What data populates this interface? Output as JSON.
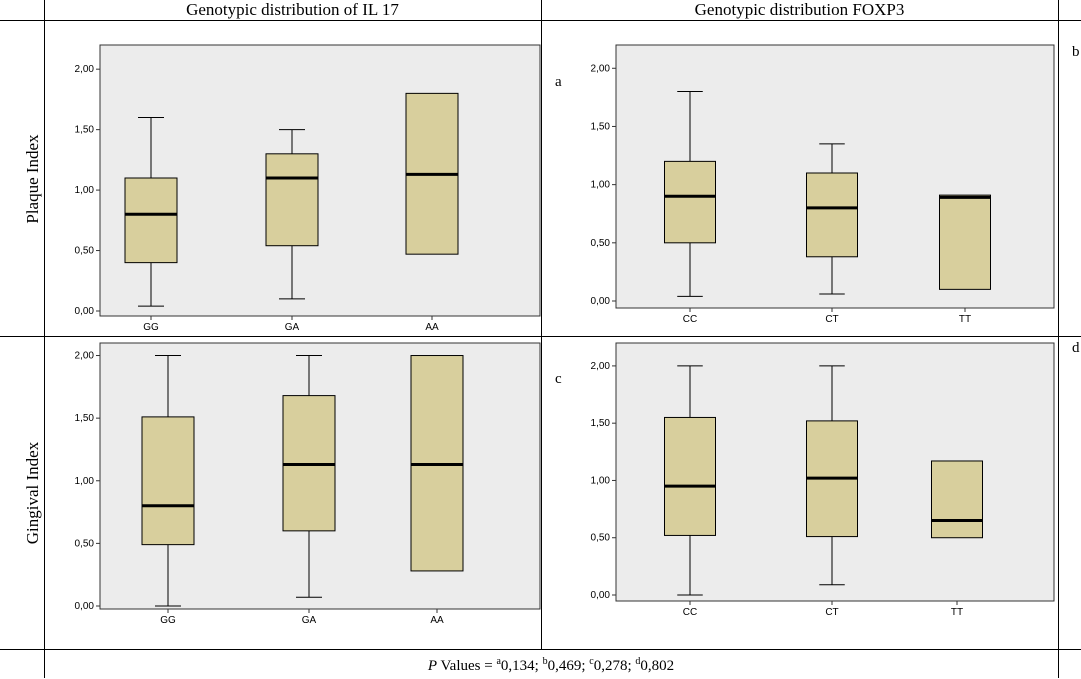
{
  "headers": {
    "il17": "Genotypic distribution of IL 17",
    "foxp3": "Genotypic distribution FOXP3"
  },
  "row_labels": {
    "plaque": "Plaque Index",
    "gingival": "Gingival Index"
  },
  "panel_labels": {
    "a": "a",
    "b": "b",
    "c": "c",
    "d": "d"
  },
  "footer": {
    "prefix": "P",
    "text": " Values = ",
    "items": [
      {
        "sup": "a",
        "value": "0,134"
      },
      {
        "sup": "b",
        "value": "0,469"
      },
      {
        "sup": "c",
        "value": "0,278"
      },
      {
        "sup": "d",
        "value": "0,802"
      }
    ],
    "separator": "; "
  },
  "colors": {
    "plot_bg": "#ececec",
    "box_fill": "#d8cf9d",
    "median": "#000000",
    "border": "#000000"
  },
  "chart_data": [
    {
      "type": "boxplot",
      "panel": "a",
      "categories": [
        "GG",
        "GA",
        "AA"
      ],
      "ylim": [
        0,
        2.2
      ],
      "yticks": [
        "0,00",
        "0,50",
        "1,00",
        "1,50",
        "2,00"
      ],
      "boxes": [
        {
          "min": 0.04,
          "q1": 0.4,
          "median": 0.8,
          "q3": 1.1,
          "max": 1.6
        },
        {
          "min": 0.1,
          "q1": 0.54,
          "median": 1.1,
          "q3": 1.3,
          "max": 1.5
        },
        {
          "min": null,
          "q1": 0.47,
          "median": 1.13,
          "q3": 1.8,
          "max": null
        }
      ]
    },
    {
      "type": "boxplot",
      "panel": "b",
      "categories": [
        "CC",
        "CT",
        "TT"
      ],
      "ylim": [
        0,
        2.2
      ],
      "yticks": [
        "0,00",
        "0,50",
        "1,00",
        "1,50",
        "2,00"
      ],
      "boxes": [
        {
          "min": 0.04,
          "q1": 0.5,
          "median": 0.9,
          "q3": 1.2,
          "max": 1.8
        },
        {
          "min": 0.06,
          "q1": 0.38,
          "median": 0.8,
          "q3": 1.1,
          "max": 1.35
        },
        {
          "min": null,
          "q1": 0.1,
          "median": 0.89,
          "q3": 0.91,
          "max": null
        }
      ]
    },
    {
      "type": "boxplot",
      "panel": "c",
      "categories": [
        "GG",
        "GA",
        "AA"
      ],
      "ylim": [
        0,
        2.1
      ],
      "yticks": [
        "0,00",
        "0,50",
        "1,00",
        "1,50",
        "2,00"
      ],
      "boxes": [
        {
          "min": 0.0,
          "q1": 0.49,
          "median": 0.8,
          "q3": 1.51,
          "max": 2.0
        },
        {
          "min": 0.07,
          "q1": 0.6,
          "median": 1.13,
          "q3": 1.68,
          "max": 2.0
        },
        {
          "min": null,
          "q1": 0.28,
          "median": 1.13,
          "q3": 2.0,
          "max": null
        }
      ]
    },
    {
      "type": "boxplot",
      "panel": "d",
      "categories": [
        "CC",
        "CT",
        "TT"
      ],
      "ylim": [
        0,
        2.2
      ],
      "yticks": [
        "0,00",
        "0,50",
        "1,00",
        "1,50",
        "2,00"
      ],
      "boxes": [
        {
          "min": 0.0,
          "q1": 0.52,
          "median": 0.95,
          "q3": 1.55,
          "max": 2.0
        },
        {
          "min": 0.09,
          "q1": 0.51,
          "median": 1.02,
          "q3": 1.52,
          "max": 2.0
        },
        {
          "min": null,
          "q1": 0.5,
          "median": 0.65,
          "q3": 1.17,
          "max": null
        }
      ]
    }
  ]
}
